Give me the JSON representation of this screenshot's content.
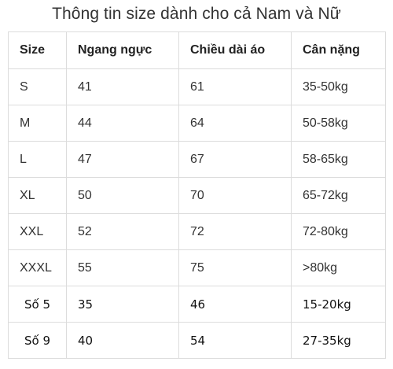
{
  "title": "Thông tin size dành cho cả Nam và Nữ",
  "table": {
    "headers": [
      "Size",
      "Ngang ngực",
      "Chiều dài áo",
      "Cân nặng"
    ],
    "rows": [
      [
        "S",
        "41",
        "61",
        "35-50kg"
      ],
      [
        "M",
        "44",
        "64",
        "50-58kg"
      ],
      [
        "L",
        "47",
        "67",
        "58-65kg"
      ],
      [
        "XL",
        "50",
        "70",
        "65-72kg"
      ],
      [
        "XXL",
        "52",
        "72",
        "72-80kg"
      ],
      [
        "XXXL",
        "55",
        "75",
        ">80kg"
      ],
      [
        "Số 5",
        "35",
        "46",
        "15-20kg"
      ],
      [
        "Số 9",
        "40",
        "54",
        "27-35kg"
      ]
    ]
  }
}
